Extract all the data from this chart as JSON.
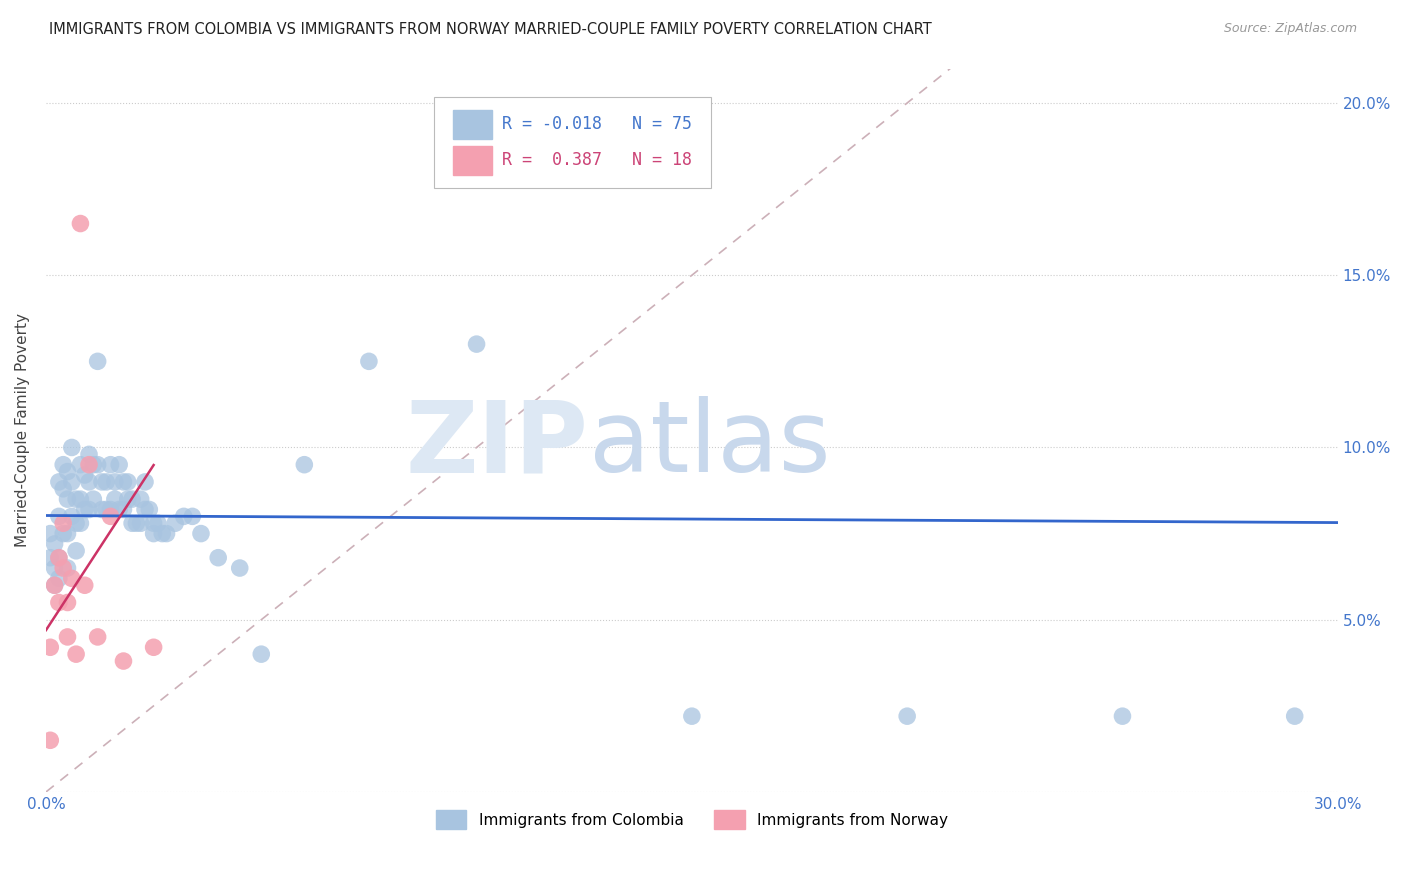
{
  "title": "IMMIGRANTS FROM COLOMBIA VS IMMIGRANTS FROM NORWAY MARRIED-COUPLE FAMILY POVERTY CORRELATION CHART",
  "source": "Source: ZipAtlas.com",
  "ylabel": "Married-Couple Family Poverty",
  "xlim": [
    0.0,
    0.3
  ],
  "ylim": [
    0.0,
    0.21
  ],
  "colombia_color": "#a8c4e0",
  "norway_color": "#f4a0b0",
  "trendline_colombia_color": "#3366cc",
  "trendline_norway_color": "#cc3366",
  "diagonal_color": "#ccb0b8",
  "r_colombia": -0.018,
  "n_colombia": 75,
  "r_norway": 0.387,
  "n_norway": 18,
  "colombia_x": [
    0.001,
    0.001,
    0.002,
    0.002,
    0.002,
    0.003,
    0.003,
    0.003,
    0.003,
    0.004,
    0.004,
    0.004,
    0.005,
    0.005,
    0.005,
    0.005,
    0.006,
    0.006,
    0.006,
    0.007,
    0.007,
    0.007,
    0.008,
    0.008,
    0.008,
    0.009,
    0.009,
    0.01,
    0.01,
    0.01,
    0.011,
    0.011,
    0.012,
    0.012,
    0.013,
    0.013,
    0.014,
    0.014,
    0.015,
    0.015,
    0.016,
    0.016,
    0.017,
    0.017,
    0.018,
    0.018,
    0.019,
    0.019,
    0.02,
    0.02,
    0.021,
    0.022,
    0.022,
    0.023,
    0.023,
    0.024,
    0.025,
    0.025,
    0.026,
    0.027,
    0.028,
    0.03,
    0.032,
    0.034,
    0.036,
    0.04,
    0.045,
    0.05,
    0.06,
    0.075,
    0.1,
    0.15,
    0.2,
    0.25,
    0.29
  ],
  "colombia_y": [
    0.075,
    0.068,
    0.072,
    0.065,
    0.06,
    0.09,
    0.08,
    0.068,
    0.062,
    0.095,
    0.088,
    0.075,
    0.093,
    0.085,
    0.075,
    0.065,
    0.1,
    0.09,
    0.08,
    0.085,
    0.078,
    0.07,
    0.095,
    0.085,
    0.078,
    0.092,
    0.082,
    0.098,
    0.09,
    0.082,
    0.095,
    0.085,
    0.125,
    0.095,
    0.09,
    0.082,
    0.09,
    0.082,
    0.095,
    0.082,
    0.09,
    0.085,
    0.095,
    0.082,
    0.09,
    0.082,
    0.09,
    0.085,
    0.085,
    0.078,
    0.078,
    0.085,
    0.078,
    0.09,
    0.082,
    0.082,
    0.078,
    0.075,
    0.078,
    0.075,
    0.075,
    0.078,
    0.08,
    0.08,
    0.075,
    0.068,
    0.065,
    0.04,
    0.095,
    0.125,
    0.13,
    0.022,
    0.022,
    0.022,
    0.022
  ],
  "norway_x": [
    0.001,
    0.001,
    0.002,
    0.003,
    0.003,
    0.004,
    0.004,
    0.005,
    0.005,
    0.006,
    0.007,
    0.008,
    0.009,
    0.01,
    0.012,
    0.015,
    0.018,
    0.025
  ],
  "norway_y": [
    0.015,
    0.042,
    0.06,
    0.068,
    0.055,
    0.078,
    0.065,
    0.055,
    0.045,
    0.062,
    0.04,
    0.165,
    0.06,
    0.095,
    0.045,
    0.08,
    0.038,
    0.042
  ]
}
